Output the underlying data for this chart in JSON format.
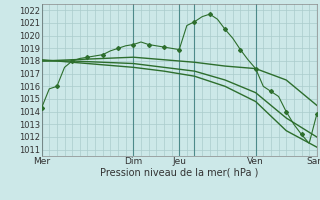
{
  "title": "",
  "xlabel": "Pression niveau de la mer( hPa )",
  "ylabel": "",
  "background_color": "#cce8e8",
  "grid_color": "#aacccc",
  "line_color": "#2d6e2d",
  "xlim": [
    0,
    108
  ],
  "ylim": [
    1010.5,
    1022.5
  ],
  "yticks": [
    1011,
    1012,
    1013,
    1014,
    1015,
    1016,
    1017,
    1018,
    1019,
    1020,
    1021,
    1022
  ],
  "xtick_positions": [
    0,
    36,
    54,
    60,
    84,
    108
  ],
  "xtick_labels": [
    "Mer",
    "Dim",
    "Jeu",
    "",
    "Ven",
    "Sam"
  ],
  "vlines": [
    0,
    36,
    54,
    60,
    84,
    108
  ],
  "series1_x": [
    0,
    3,
    6,
    9,
    12,
    15,
    18,
    21,
    24,
    27,
    30,
    33,
    36,
    39,
    42,
    45,
    48,
    51,
    54,
    57,
    60,
    63,
    66,
    69,
    72,
    75,
    78,
    81,
    84,
    87,
    90,
    93,
    96,
    99,
    102,
    105,
    108
  ],
  "series1_y": [
    1014.3,
    1015.8,
    1016.0,
    1017.5,
    1018.0,
    1018.2,
    1018.3,
    1018.4,
    1018.5,
    1018.8,
    1019.0,
    1019.2,
    1019.3,
    1019.5,
    1019.3,
    1019.2,
    1019.1,
    1019.0,
    1018.9,
    1020.8,
    1021.1,
    1021.5,
    1021.7,
    1021.3,
    1020.5,
    1019.8,
    1018.9,
    1018.1,
    1017.4,
    1016.0,
    1015.6,
    1015.2,
    1014.0,
    1013.0,
    1012.2,
    1011.5,
    1013.8
  ],
  "series2_x": [
    0,
    12,
    24,
    36,
    48,
    60,
    72,
    84,
    96,
    108
  ],
  "series2_y": [
    1018.0,
    1018.1,
    1018.2,
    1018.3,
    1018.1,
    1017.9,
    1017.6,
    1017.4,
    1016.5,
    1014.5
  ],
  "series3_x": [
    0,
    12,
    24,
    36,
    48,
    60,
    72,
    84,
    96,
    108
  ],
  "series3_y": [
    1018.0,
    1018.0,
    1017.9,
    1017.8,
    1017.5,
    1017.2,
    1016.5,
    1015.5,
    1013.5,
    1012.0
  ],
  "series4_x": [
    0,
    12,
    24,
    36,
    48,
    60,
    72,
    84,
    96,
    108
  ],
  "series4_y": [
    1018.1,
    1017.9,
    1017.7,
    1017.5,
    1017.2,
    1016.8,
    1016.0,
    1014.8,
    1012.5,
    1011.2
  ]
}
